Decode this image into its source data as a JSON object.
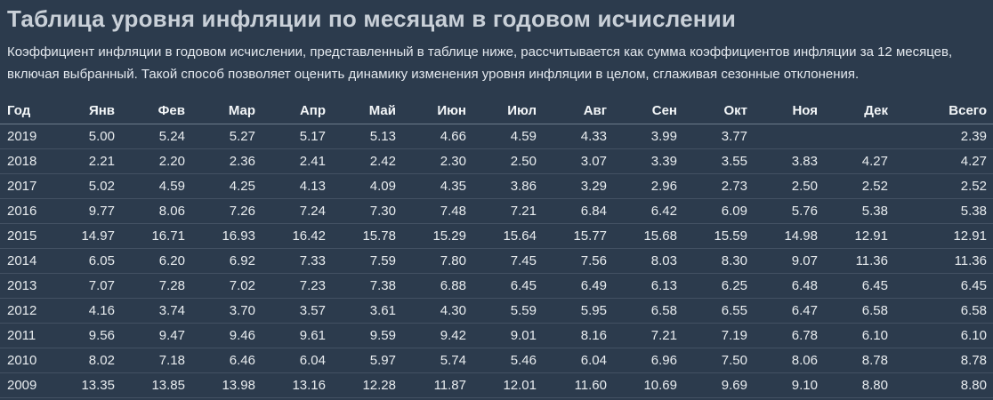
{
  "colors": {
    "background": "#2c3b4d",
    "title_text": "#c9d0d8",
    "body_text": "#e3e8ee",
    "header_text": "#f3f6f8",
    "cell_text": "#e8ecef"
  },
  "header": {
    "title": "Таблица уровня инфляции по месяцам в годовом исчислении"
  },
  "description_lines": [
    "Коэффициент инфляции в годовом исчислении, представленный в таблице ниже, рассчитывается как сумма коэффициентов инфляции за 12 месяцев,",
    "включая выбранный. Такой способ позволяет оценить динамику изменения уровня инфляции в целом, сглаживая сезонные отклонения."
  ],
  "table": {
    "columns": [
      "Год",
      "Янв",
      "Фев",
      "Мар",
      "Апр",
      "Май",
      "Июн",
      "Июл",
      "Авг",
      "Сен",
      "Окт",
      "Ноя",
      "Дек",
      "Всего"
    ],
    "rows": [
      [
        "2019",
        "5.00",
        "5.24",
        "5.27",
        "5.17",
        "5.13",
        "4.66",
        "4.59",
        "4.33",
        "3.99",
        "3.77",
        "",
        "",
        "2.39"
      ],
      [
        "2018",
        "2.21",
        "2.20",
        "2.36",
        "2.41",
        "2.42",
        "2.30",
        "2.50",
        "3.07",
        "3.39",
        "3.55",
        "3.83",
        "4.27",
        "4.27"
      ],
      [
        "2017",
        "5.02",
        "4.59",
        "4.25",
        "4.13",
        "4.09",
        "4.35",
        "3.86",
        "3.29",
        "2.96",
        "2.73",
        "2.50",
        "2.52",
        "2.52"
      ],
      [
        "2016",
        "9.77",
        "8.06",
        "7.26",
        "7.24",
        "7.30",
        "7.48",
        "7.21",
        "6.84",
        "6.42",
        "6.09",
        "5.76",
        "5.38",
        "5.38"
      ],
      [
        "2015",
        "14.97",
        "16.71",
        "16.93",
        "16.42",
        "15.78",
        "15.29",
        "15.64",
        "15.77",
        "15.68",
        "15.59",
        "14.98",
        "12.91",
        "12.91"
      ],
      [
        "2014",
        "6.05",
        "6.20",
        "6.92",
        "7.33",
        "7.59",
        "7.80",
        "7.45",
        "7.56",
        "8.03",
        "8.30",
        "9.07",
        "11.36",
        "11.36"
      ],
      [
        "2013",
        "7.07",
        "7.28",
        "7.02",
        "7.23",
        "7.38",
        "6.88",
        "6.45",
        "6.49",
        "6.13",
        "6.25",
        "6.48",
        "6.45",
        "6.45"
      ],
      [
        "2012",
        "4.16",
        "3.74",
        "3.70",
        "3.57",
        "3.61",
        "4.30",
        "5.59",
        "5.95",
        "6.58",
        "6.55",
        "6.47",
        "6.58",
        "6.58"
      ],
      [
        "2011",
        "9.56",
        "9.47",
        "9.46",
        "9.61",
        "9.59",
        "9.42",
        "9.01",
        "8.16",
        "7.21",
        "7.19",
        "6.78",
        "6.10",
        "6.10"
      ],
      [
        "2010",
        "8.02",
        "7.18",
        "6.46",
        "6.04",
        "5.97",
        "5.74",
        "5.46",
        "6.04",
        "6.96",
        "7.50",
        "8.06",
        "8.78",
        "8.78"
      ],
      [
        "2009",
        "13.35",
        "13.85",
        "13.98",
        "13.16",
        "12.28",
        "11.87",
        "12.01",
        "11.60",
        "10.69",
        "9.69",
        "9.10",
        "8.80",
        "8.80"
      ]
    ]
  }
}
